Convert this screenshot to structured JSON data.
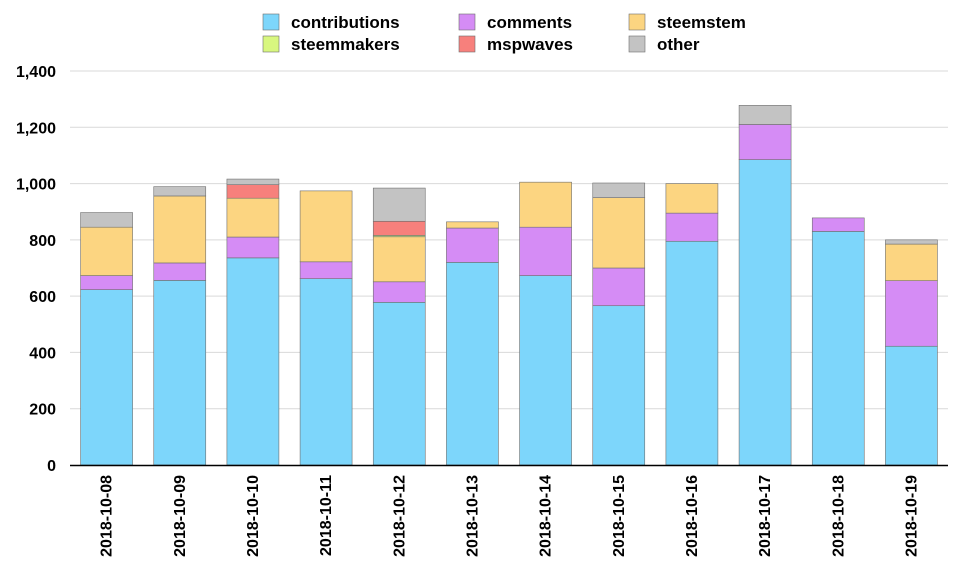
{
  "chart_data": {
    "type": "bar",
    "stacked": true,
    "title": "",
    "xlabel": "",
    "ylabel": "",
    "ylim": [
      0,
      1400
    ],
    "y_ticks": [
      0,
      200,
      400,
      600,
      800,
      1000,
      1200,
      1400
    ],
    "y_tick_labels": [
      "0",
      "200",
      "400",
      "600",
      "800",
      "1,000",
      "1,200",
      "1,400"
    ],
    "grid": true,
    "legend_position": "top-center",
    "categories": [
      "2018-10-08",
      "2018-10-09",
      "2018-10-10",
      "2018-10-11",
      "2018-10-12",
      "2018-10-13",
      "2018-10-14",
      "2018-10-15",
      "2018-10-16",
      "2018-10-17",
      "2018-10-18",
      "2018-10-19"
    ],
    "series": [
      {
        "name": "contributions",
        "color": "#7dd6fb",
        "values": [
          623,
          656,
          736,
          662,
          578,
          720,
          673,
          566,
          795,
          1085,
          830,
          422
        ]
      },
      {
        "name": "comments",
        "color": "#d58cf5",
        "values": [
          50,
          62,
          74,
          60,
          73,
          122,
          172,
          134,
          100,
          125,
          48,
          233
        ]
      },
      {
        "name": "steemstem",
        "color": "#fcd581",
        "values": [
          172,
          238,
          138,
          252,
          160,
          22,
          160,
          250,
          105,
          0,
          0,
          130
        ]
      },
      {
        "name": "steemmakers",
        "color": "#d8f77f",
        "values": [
          0,
          0,
          0,
          0,
          5,
          0,
          0,
          0,
          0,
          0,
          0,
          0
        ]
      },
      {
        "name": "mspwaves",
        "color": "#f7807c",
        "values": [
          0,
          0,
          48,
          0,
          50,
          0,
          0,
          0,
          0,
          0,
          0,
          0
        ]
      },
      {
        "name": "other",
        "color": "#c3c3c3",
        "values": [
          52,
          33,
          20,
          0,
          118,
          0,
          0,
          52,
          0,
          68,
          0,
          15
        ]
      }
    ]
  }
}
